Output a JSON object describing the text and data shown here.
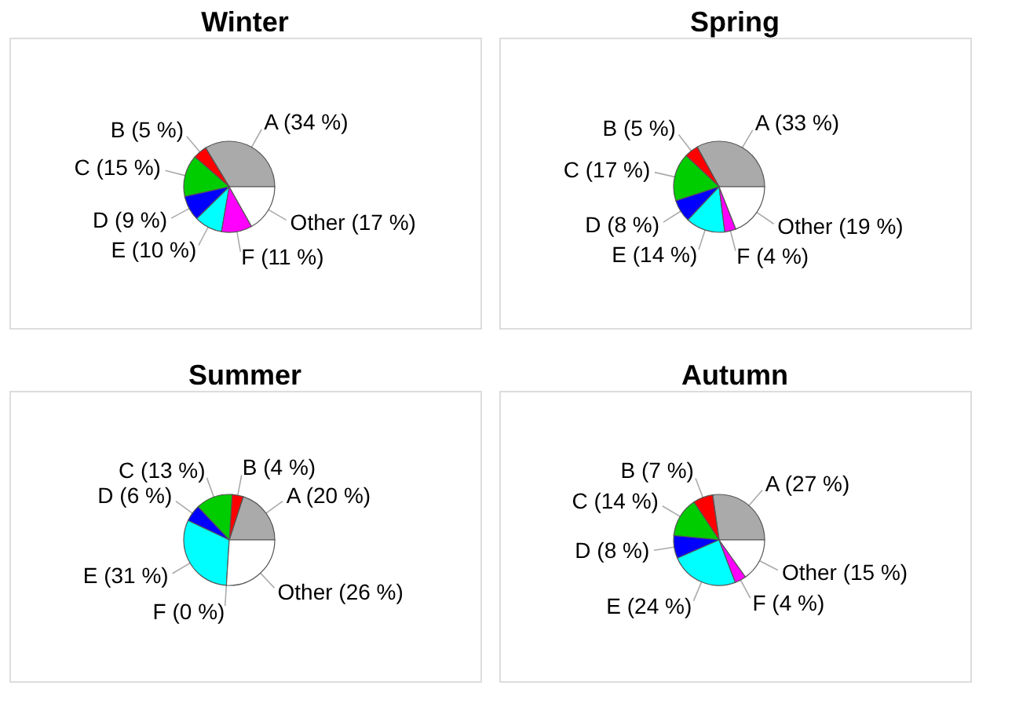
{
  "chart_data": [
    {
      "type": "pie",
      "title": "Winter",
      "categories": [
        "A",
        "B",
        "C",
        "D",
        "E",
        "F",
        "Other"
      ],
      "values": [
        34,
        5,
        15,
        9,
        10,
        11,
        17
      ],
      "colors": [
        "#aaaaaa",
        "#ff0000",
        "#00cd00",
        "#0000ff",
        "#00ffff",
        "#ff00ff",
        "#ffffff"
      ],
      "value_labels": [
        "(34 %)",
        "(5 %)",
        "(15 %)",
        "(9 %)",
        "(10 %)",
        "(11 %)",
        "(17 %)"
      ]
    },
    {
      "type": "pie",
      "title": "Spring",
      "categories": [
        "A",
        "B",
        "C",
        "D",
        "E",
        "F",
        "Other"
      ],
      "values": [
        33,
        5,
        17,
        8,
        14,
        4,
        19
      ],
      "colors": [
        "#aaaaaa",
        "#ff0000",
        "#00cd00",
        "#0000ff",
        "#00ffff",
        "#ff00ff",
        "#ffffff"
      ],
      "value_labels": [
        "(33 %)",
        "(5 %)",
        "(17 %)",
        "(8 %)",
        "(14 %)",
        "(4 %)",
        "(19 %)"
      ]
    },
    {
      "type": "pie",
      "title": "Summer",
      "categories": [
        "A",
        "B",
        "C",
        "D",
        "E",
        "F",
        "Other"
      ],
      "values": [
        20,
        4,
        13,
        6,
        31,
        0,
        26
      ],
      "colors": [
        "#aaaaaa",
        "#ff0000",
        "#00cd00",
        "#0000ff",
        "#00ffff",
        "#ff00ff",
        "#ffffff"
      ],
      "value_labels": [
        "(20 %)",
        "(4 %)",
        "(13 %)",
        "(6 %)",
        "(31 %)",
        "(0 %)",
        "(26 %)"
      ]
    },
    {
      "type": "pie",
      "title": "Autumn",
      "categories": [
        "A",
        "B",
        "C",
        "D",
        "E",
        "F",
        "Other"
      ],
      "values": [
        27,
        7,
        14,
        8,
        24,
        4,
        15
      ],
      "colors": [
        "#aaaaaa",
        "#ff0000",
        "#00cd00",
        "#0000ff",
        "#00ffff",
        "#ff00ff",
        "#ffffff"
      ],
      "value_labels": [
        "(27 %)",
        "(7 %)",
        "(14 %)",
        "(8 %)",
        "(24 %)",
        "(4 %)",
        "(15 %)"
      ]
    }
  ]
}
